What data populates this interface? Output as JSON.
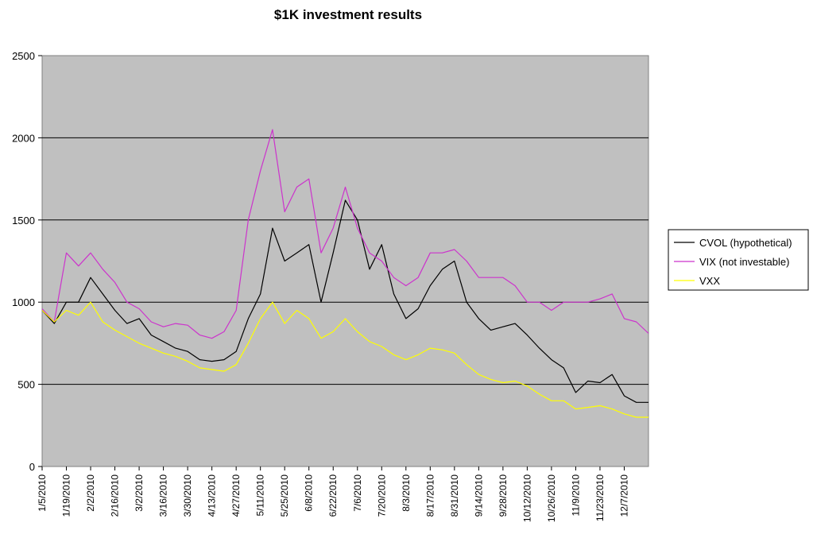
{
  "chart_data": {
    "type": "line",
    "title": "$1K investment results",
    "xlabel": "",
    "ylabel": "",
    "ylim": [
      0,
      2500
    ],
    "yticks": [
      0,
      500,
      1000,
      1500,
      2000,
      2500
    ],
    "grid": true,
    "legend_position": "right",
    "plot_background": "#c0c0c0",
    "x_tick_labels": [
      "1/5/2010",
      "1/19/2010",
      "2/2/2010",
      "2/16/2010",
      "3/2/2010",
      "3/16/2010",
      "3/30/2010",
      "4/13/2010",
      "4/27/2010",
      "5/11/2010",
      "5/25/2010",
      "6/8/2010",
      "6/22/2010",
      "7/6/2010",
      "7/20/2010",
      "8/3/2010",
      "8/17/2010",
      "8/31/2010",
      "9/14/2010",
      "9/28/2010",
      "10/12/2010",
      "10/26/2010",
      "11/9/2010",
      "11/23/2010",
      "12/7/2010"
    ],
    "x": [
      "1/5/2010",
      "1/12/2010",
      "1/19/2010",
      "1/26/2010",
      "2/2/2010",
      "2/9/2010",
      "2/16/2010",
      "2/23/2010",
      "3/2/2010",
      "3/9/2010",
      "3/16/2010",
      "3/23/2010",
      "3/30/2010",
      "4/6/2010",
      "4/13/2010",
      "4/20/2010",
      "4/27/2010",
      "5/4/2010",
      "5/11/2010",
      "5/18/2010",
      "5/25/2010",
      "6/1/2010",
      "6/8/2010",
      "6/15/2010",
      "6/22/2010",
      "6/29/2010",
      "7/6/2010",
      "7/13/2010",
      "7/20/2010",
      "7/27/2010",
      "8/3/2010",
      "8/10/2010",
      "8/17/2010",
      "8/24/2010",
      "8/31/2010",
      "9/7/2010",
      "9/14/2010",
      "9/21/2010",
      "9/28/2010",
      "10/5/2010",
      "10/12/2010",
      "10/19/2010",
      "10/26/2010",
      "11/2/2010",
      "11/9/2010",
      "11/16/2010",
      "11/23/2010",
      "11/30/2010",
      "12/7/2010",
      "12/14/2010",
      "12/21/2010"
    ],
    "series": [
      {
        "name": "CVOL (hypothetical)",
        "color": "#000000",
        "values": [
          950,
          870,
          1000,
          1000,
          1150,
          1050,
          950,
          870,
          900,
          800,
          760,
          720,
          700,
          650,
          640,
          650,
          700,
          900,
          1050,
          1450,
          1250,
          1300,
          1350,
          1000,
          1300,
          1620,
          1500,
          1200,
          1350,
          1050,
          900,
          960,
          1100,
          1200,
          1250,
          1000,
          900,
          830,
          850,
          870,
          800,
          720,
          650,
          600,
          450,
          520,
          510,
          560,
          430,
          390,
          390
        ]
      },
      {
        "name": "VIX (not investable)",
        "color": "#cc33cc",
        "values": [
          960,
          880,
          1300,
          1220,
          1300,
          1200,
          1120,
          1000,
          960,
          880,
          850,
          870,
          860,
          800,
          780,
          820,
          950,
          1500,
          1800,
          2050,
          1550,
          1700,
          1750,
          1300,
          1450,
          1700,
          1450,
          1300,
          1250,
          1150,
          1100,
          1150,
          1300,
          1300,
          1320,
          1250,
          1150,
          1150,
          1150,
          1100,
          1000,
          1000,
          950,
          1000,
          1000,
          1000,
          1020,
          1050,
          900,
          880,
          810
        ]
      },
      {
        "name": "VXX",
        "color": "#ffff00",
        "values": [
          950,
          880,
          950,
          920,
          1000,
          880,
          830,
          790,
          750,
          720,
          690,
          670,
          640,
          600,
          590,
          580,
          620,
          750,
          900,
          1000,
          870,
          950,
          900,
          780,
          820,
          900,
          820,
          760,
          730,
          680,
          650,
          680,
          720,
          710,
          690,
          620,
          560,
          530,
          510,
          520,
          490,
          440,
          400,
          400,
          350,
          360,
          370,
          350,
          320,
          300,
          300
        ]
      }
    ]
  }
}
